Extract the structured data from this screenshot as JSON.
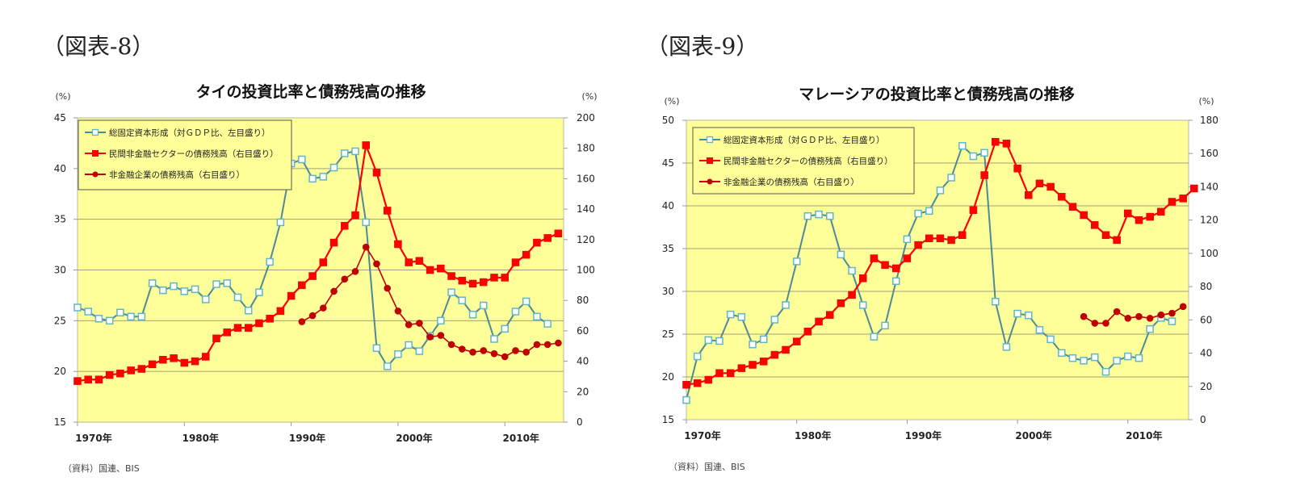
{
  "figures": [
    {
      "label": "（図表-8）"
    },
    {
      "label": "（図表-9）"
    }
  ],
  "chart_data": [
    {
      "type": "line",
      "title": "タイの投資比率と債務残高の推移",
      "ylabel_left": "(%)",
      "ylabel_right": "(%)",
      "ylim_left": [
        15,
        45
      ],
      "ylim_right": [
        0,
        200
      ],
      "yticks_left": [
        "45",
        "40",
        "35",
        "30",
        "25",
        "20",
        "15"
      ],
      "yticks_right": [
        "200",
        "180",
        "160",
        "140",
        "120",
        "100",
        "80",
        "60",
        "40",
        "20",
        "0"
      ],
      "xticks": [
        "1970年",
        "1980年",
        "1990年",
        "2000年",
        "2010年"
      ],
      "xtick_years": [
        1970,
        1980,
        1990,
        2000,
        2010
      ],
      "xlim": [
        1970,
        2015.5
      ],
      "grid": true,
      "legend_position": "top-left",
      "source": "（資料）国連、BIS",
      "series": [
        {
          "name": "総固定資本形成（対ＧＤＰ比、左目盛り）",
          "axis": "left",
          "marker": "square-open",
          "color": "#4a8a9a",
          "x_start": 1970,
          "values": [
            26.3,
            25.9,
            25.2,
            25.0,
            25.8,
            25.4,
            25.4,
            28.7,
            28.0,
            28.4,
            27.9,
            28.1,
            27.1,
            28.6,
            28.7,
            27.3,
            26.0,
            27.8,
            30.8,
            34.7,
            40.5,
            40.9,
            39.0,
            39.2,
            40.1,
            41.5,
            41.7,
            34.7,
            22.3,
            20.5,
            21.7,
            22.6,
            22.0,
            23.5,
            25.0,
            27.8,
            27.0,
            25.6,
            26.5,
            23.2,
            24.2,
            25.9,
            26.9,
            25.4,
            24.7
          ]
        },
        {
          "name": "民間非金融セクターの債務残高（右目盛り）",
          "axis": "right",
          "marker": "square-filled",
          "color": "#ff0000",
          "x_start": 1970,
          "values": [
            27,
            28,
            28,
            31,
            32,
            34,
            35,
            38,
            41,
            42,
            39,
            40,
            43,
            55,
            59,
            62,
            62,
            65,
            68,
            73,
            83,
            90,
            96,
            105,
            118,
            129,
            136,
            182,
            164,
            139,
            117,
            105,
            106,
            100,
            101,
            96,
            93,
            91,
            92,
            95,
            95,
            105,
            110,
            118,
            121,
            124
          ]
        },
        {
          "name": "非金融企業の債務残高（右目盛り）",
          "axis": "right",
          "marker": "circle-filled",
          "color": "#c00000",
          "x_start": 1991,
          "values": [
            66,
            70,
            75,
            86,
            94,
            99,
            115,
            104,
            88,
            73,
            64,
            65,
            56,
            57,
            51,
            48,
            46,
            47,
            45,
            43,
            47,
            46,
            51,
            51,
            52
          ]
        }
      ]
    },
    {
      "type": "line",
      "title": "マレーシアの投資比率と債務残高の推移",
      "ylabel_left": "(%)",
      "ylabel_right": "(%)",
      "ylim_left": [
        15,
        50
      ],
      "ylim_right": [
        0,
        180
      ],
      "yticks_left": [
        "50",
        "45",
        "40",
        "35",
        "30",
        "25",
        "20",
        "15"
      ],
      "yticks_right": [
        "180",
        "160",
        "140",
        "120",
        "100",
        "80",
        "60",
        "40",
        "20",
        "0"
      ],
      "xticks": [
        "1970年",
        "1980年",
        "1990年",
        "2000年",
        "2010年"
      ],
      "xtick_years": [
        1970,
        1980,
        1990,
        2000,
        2010
      ],
      "xlim": [
        1970,
        2015.5
      ],
      "grid": true,
      "legend_position": "top-left",
      "source": "（資料）国連、BIS",
      "series": [
        {
          "name": "総固定資本形成（対ＧＤＰ比、左目盛り）",
          "axis": "left",
          "marker": "square-open",
          "color": "#4a8a9a",
          "x_start": 1970,
          "values": [
            17.3,
            22.4,
            24.3,
            24.2,
            27.3,
            27.0,
            23.8,
            24.4,
            26.7,
            28.4,
            33.5,
            38.8,
            39.0,
            38.8,
            34.3,
            32.4,
            28.4,
            24.7,
            26.0,
            31.2,
            36.1,
            39.1,
            39.4,
            41.8,
            43.3,
            47.0,
            45.8,
            46.2,
            28.8,
            23.5,
            27.4,
            27.2,
            25.5,
            24.4,
            22.8,
            22.2,
            21.9,
            22.3,
            20.6,
            21.9,
            22.4,
            22.2,
            25.6,
            26.9,
            26.5
          ]
        },
        {
          "name": "民間非金融セクターの債務残高（右目盛り）",
          "axis": "right",
          "marker": "square-filled",
          "color": "#ff0000",
          "x_start": 1970,
          "values": [
            21,
            22,
            24,
            28,
            28,
            31,
            33,
            35,
            39,
            42,
            47,
            53,
            59,
            63,
            70,
            75,
            85,
            97,
            93,
            91,
            97,
            105,
            109,
            109,
            108,
            111,
            126,
            147,
            167,
            166,
            151,
            135,
            142,
            140,
            134,
            128,
            123,
            117,
            111,
            108,
            124,
            120,
            122,
            125,
            131,
            133,
            139
          ]
        },
        {
          "name": "非金融企業の債務残高（右目盛り）",
          "axis": "right",
          "marker": "circle-filled",
          "color": "#c00000",
          "x_start": 2006,
          "values": [
            62,
            58,
            58,
            65,
            61,
            62,
            61,
            63,
            64,
            68
          ]
        }
      ]
    }
  ]
}
